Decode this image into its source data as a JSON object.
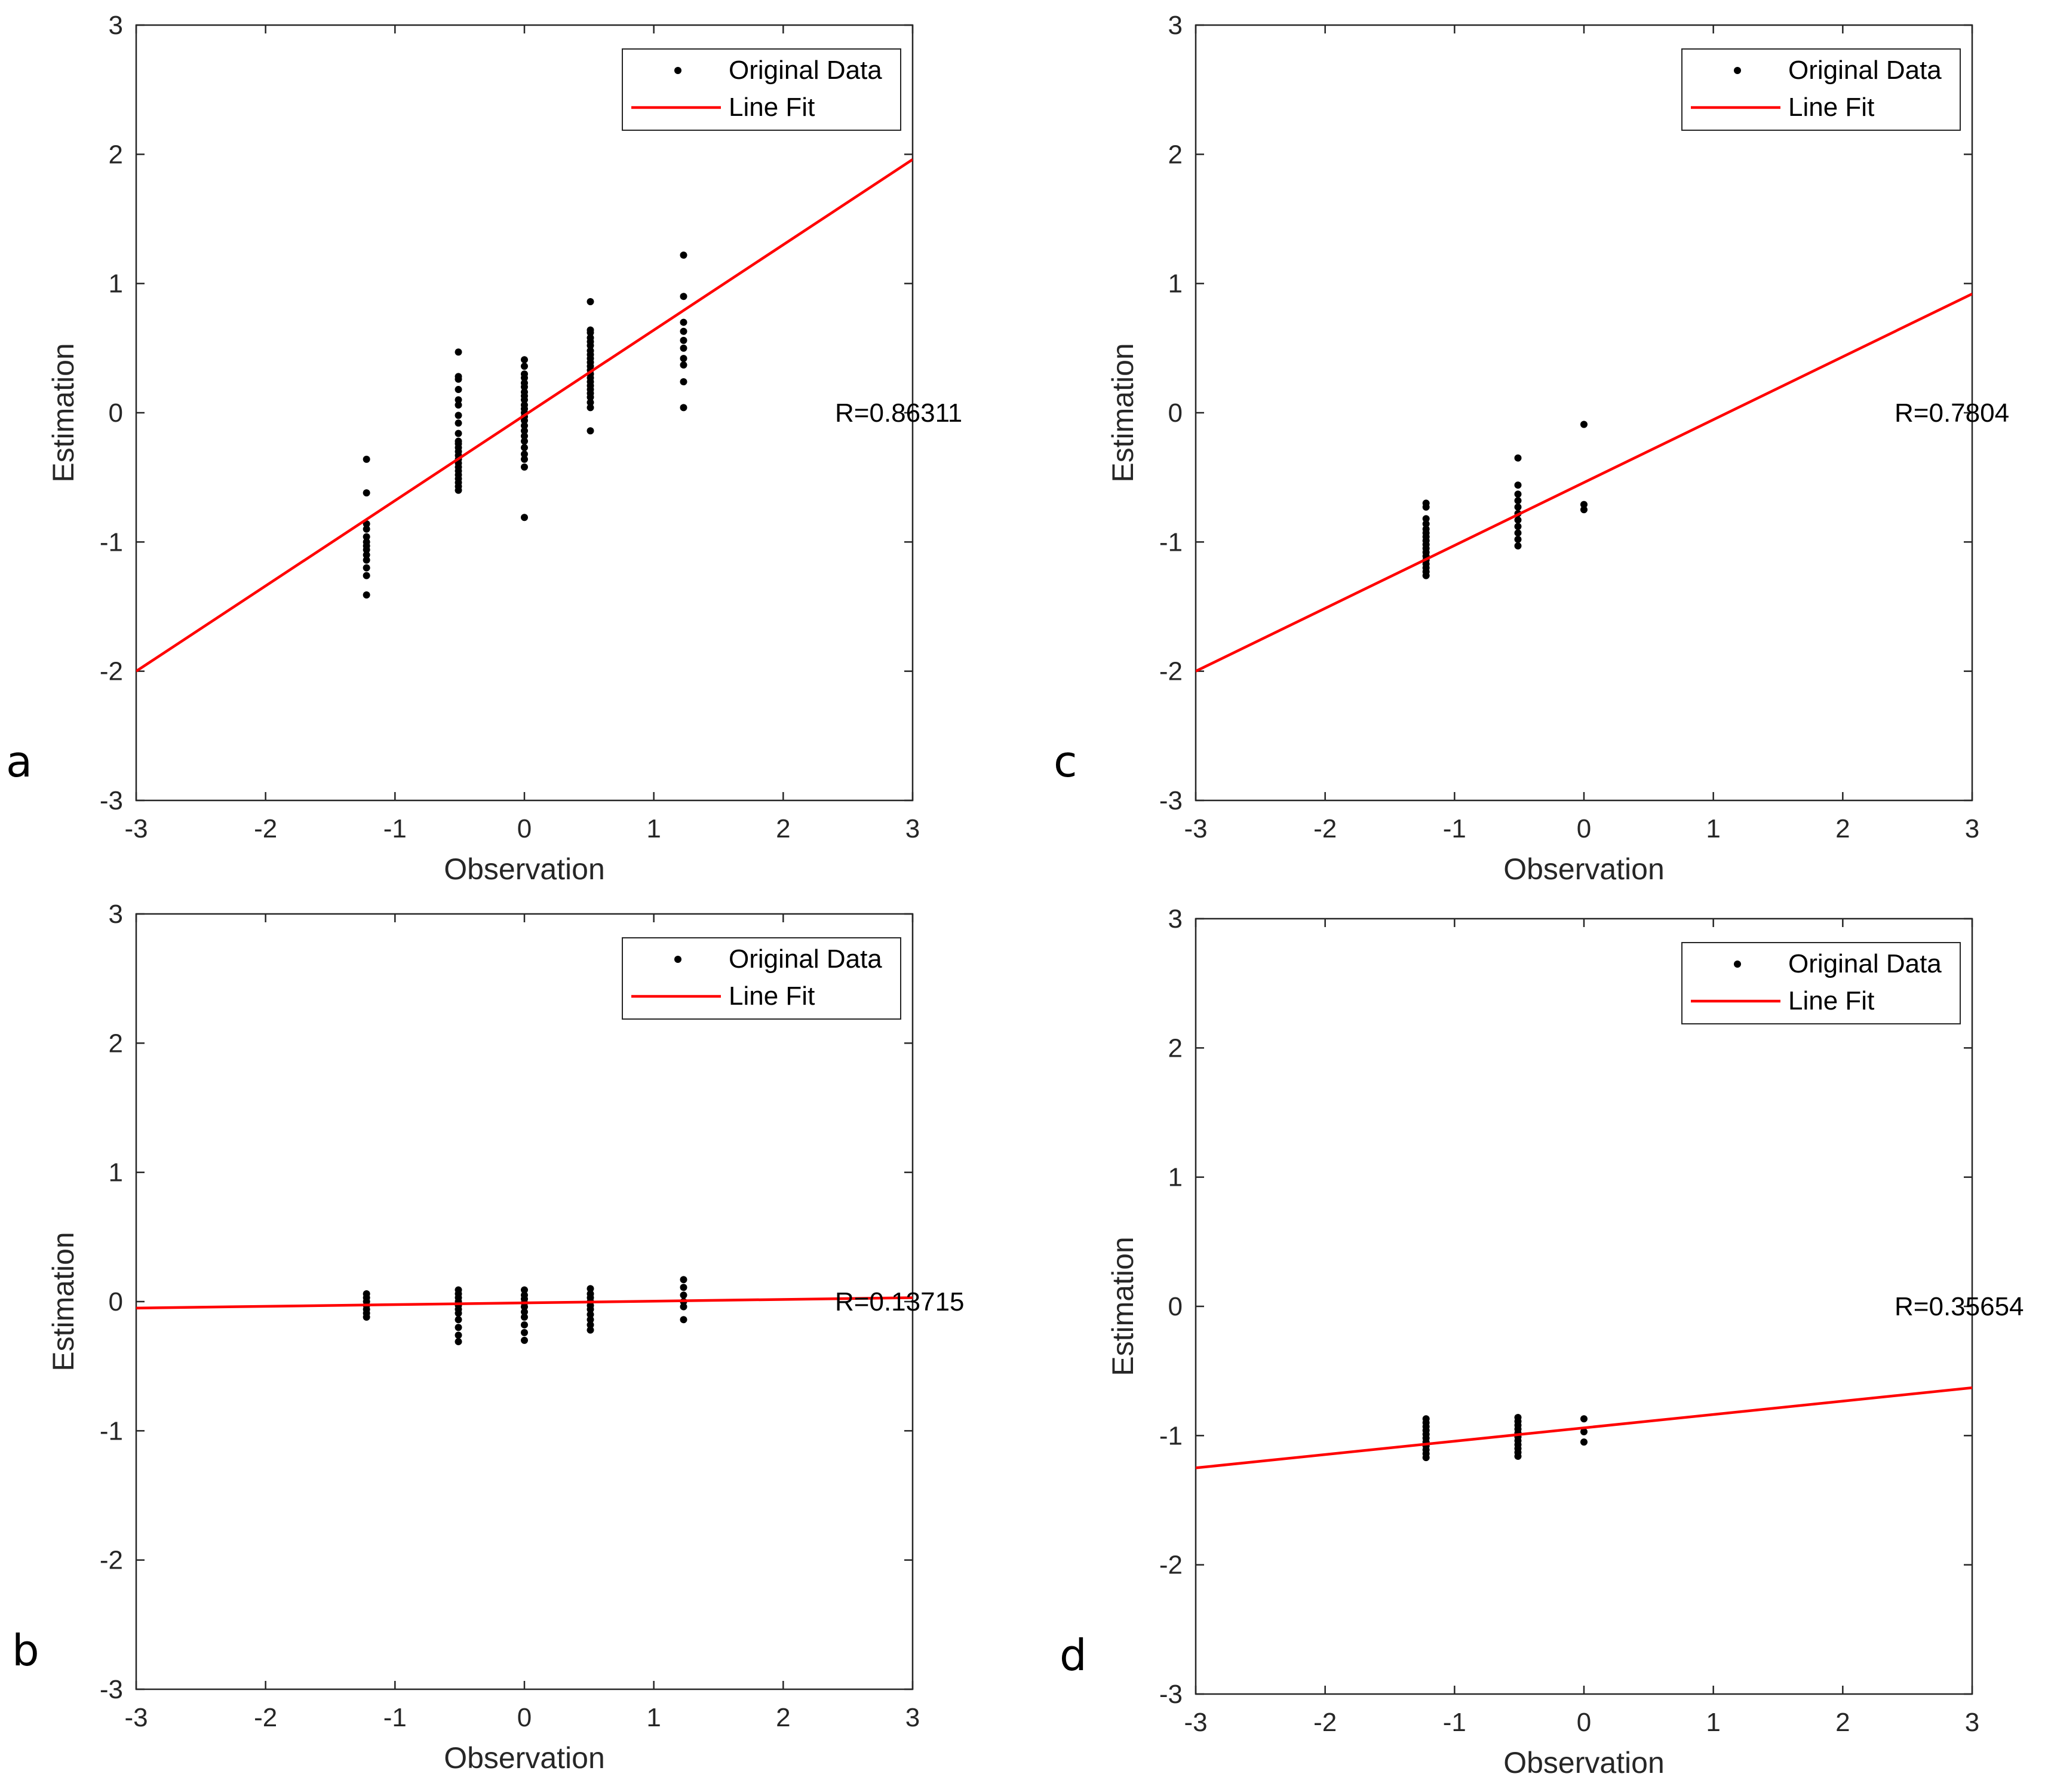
{
  "figure": {
    "colors": {
      "fit_line": "#ff0000",
      "points": "#000000",
      "axes": "#262626"
    }
  },
  "chart_data": [
    {
      "type": "scatter",
      "panel": "a",
      "xlabel": "Observation",
      "ylabel": "Estimation",
      "xlim": [
        -3,
        3
      ],
      "ylim": [
        -3,
        3
      ],
      "xticks": [
        "-3",
        "-2",
        "-1",
        "0",
        "1",
        "2",
        "3"
      ],
      "yticks": [
        "-3",
        "-2",
        "-1",
        "0",
        "1",
        "2",
        "3"
      ],
      "grid": false,
      "legend": {
        "position": "top-right",
        "entries": [
          "Original Data",
          "Line Fit"
        ]
      },
      "annotation": "R=0.86311",
      "series": [
        {
          "name": "Original Data",
          "groups": [
            {
              "x": -1.22,
              "y": [
                -0.36,
                -0.62,
                -0.86,
                -0.9,
                -0.96,
                -1.0,
                -1.03,
                -1.06,
                -1.1,
                -1.14,
                -1.2,
                -1.26,
                -1.41
              ]
            },
            {
              "x": -0.51,
              "y": [
                0.47,
                0.28,
                0.26,
                0.18,
                0.1,
                0.06,
                -0.02,
                -0.08,
                -0.16,
                -0.22,
                -0.24,
                -0.27,
                -0.3,
                -0.33,
                -0.36,
                -0.39,
                -0.42,
                -0.45,
                -0.48,
                -0.51,
                -0.54,
                -0.57,
                -0.6
              ]
            },
            {
              "x": 0.0,
              "y": [
                0.41,
                0.36,
                0.3,
                0.27,
                0.23,
                0.2,
                0.16,
                0.13,
                0.1,
                0.06,
                0.03,
                0.0,
                -0.03,
                -0.06,
                -0.1,
                -0.14,
                -0.18,
                -0.22,
                -0.27,
                -0.32,
                -0.36,
                -0.42,
                -0.81
              ]
            },
            {
              "x": 0.51,
              "y": [
                0.86,
                0.64,
                0.62,
                0.58,
                0.55,
                0.52,
                0.48,
                0.45,
                0.42,
                0.39,
                0.36,
                0.33,
                0.3,
                0.27,
                0.24,
                0.21,
                0.18,
                0.15,
                0.12,
                0.08,
                0.04,
                -0.14
              ]
            },
            {
              "x": 1.23,
              "y": [
                1.22,
                0.9,
                0.7,
                0.63,
                0.56,
                0.5,
                0.42,
                0.37,
                0.24,
                0.04
              ]
            }
          ]
        },
        {
          "name": "Line Fit",
          "type": "line",
          "x": [
            -3,
            3
          ],
          "y": [
            -2.0,
            1.96
          ]
        }
      ]
    },
    {
      "type": "scatter",
      "panel": "c",
      "xlabel": "Observation",
      "ylabel": "Estimation",
      "xlim": [
        -3,
        3
      ],
      "ylim": [
        -3,
        3
      ],
      "xticks": [
        "-3",
        "-2",
        "-1",
        "0",
        "1",
        "2",
        "3"
      ],
      "yticks": [
        "-3",
        "-2",
        "-1",
        "0",
        "1",
        "2",
        "3"
      ],
      "grid": false,
      "legend": {
        "position": "top-right",
        "entries": [
          "Original Data",
          "Line Fit"
        ]
      },
      "annotation": "R=0.7804",
      "series": [
        {
          "name": "Original Data",
          "groups": [
            {
              "x": -1.22,
              "y": [
                -0.7,
                -0.73,
                -0.82,
                -0.86,
                -0.9,
                -0.93,
                -0.96,
                -0.99,
                -1.02,
                -1.05,
                -1.08,
                -1.11,
                -1.14,
                -1.17,
                -1.2,
                -1.23,
                -1.26
              ]
            },
            {
              "x": -0.51,
              "y": [
                -0.35,
                -0.56,
                -0.63,
                -0.68,
                -0.73,
                -0.78,
                -0.83,
                -0.88,
                -0.93,
                -0.98,
                -1.03
              ]
            },
            {
              "x": 0.0,
              "y": [
                -0.09,
                -0.71,
                -0.75
              ]
            }
          ]
        },
        {
          "name": "Line Fit",
          "type": "line",
          "x": [
            -3,
            3
          ],
          "y": [
            -2.0,
            0.92
          ]
        }
      ]
    },
    {
      "type": "scatter",
      "panel": "b",
      "xlabel": "Observation",
      "ylabel": "Estimation",
      "xlim": [
        -3,
        3
      ],
      "ylim": [
        -3,
        3
      ],
      "xticks": [
        "-3",
        "-2",
        "-1",
        "0",
        "1",
        "2",
        "3"
      ],
      "yticks": [
        "-3",
        "-2",
        "-1",
        "0",
        "1",
        "2",
        "3"
      ],
      "grid": false,
      "legend": {
        "position": "top-right",
        "entries": [
          "Original Data",
          "Line Fit"
        ]
      },
      "annotation": "R=0.13715",
      "series": [
        {
          "name": "Original Data",
          "groups": [
            {
              "x": -1.22,
              "y": [
                0.06,
                0.03,
                0.0,
                -0.03,
                -0.06,
                -0.09,
                -0.12
              ]
            },
            {
              "x": -0.51,
              "y": [
                0.09,
                0.06,
                0.03,
                0.0,
                -0.03,
                -0.06,
                -0.09,
                -0.14,
                -0.2,
                -0.26,
                -0.31
              ]
            },
            {
              "x": 0.0,
              "y": [
                0.09,
                0.05,
                0.02,
                -0.01,
                -0.04,
                -0.08,
                -0.12,
                -0.18,
                -0.24,
                -0.3
              ]
            },
            {
              "x": 0.51,
              "y": [
                0.1,
                0.06,
                0.03,
                0.0,
                -0.03,
                -0.06,
                -0.1,
                -0.14,
                -0.18,
                -0.22
              ]
            },
            {
              "x": 1.23,
              "y": [
                0.17,
                0.11,
                0.05,
                0.0,
                -0.04,
                -0.14
              ]
            }
          ]
        },
        {
          "name": "Line Fit",
          "type": "line",
          "x": [
            -3,
            3
          ],
          "y": [
            -0.05,
            0.03
          ]
        }
      ]
    },
    {
      "type": "scatter",
      "panel": "d",
      "xlabel": "Observation",
      "ylabel": "Estimation",
      "xlim": [
        -3,
        3
      ],
      "ylim": [
        -3,
        3
      ],
      "xticks": [
        "-3",
        "-2",
        "-1",
        "0",
        "1",
        "2",
        "3"
      ],
      "yticks": [
        "-3",
        "-2",
        "-1",
        "0",
        "1",
        "2",
        "3"
      ],
      "grid": false,
      "legend": {
        "position": "top-right",
        "entries": [
          "Original Data",
          "Line Fit"
        ]
      },
      "annotation": "R=0.35654",
      "series": [
        {
          "name": "Original Data",
          "groups": [
            {
              "x": -1.22,
              "y": [
                -0.87,
                -0.9,
                -0.93,
                -0.96,
                -0.99,
                -1.02,
                -1.05,
                -1.08,
                -1.11,
                -1.14,
                -1.17
              ]
            },
            {
              "x": -0.51,
              "y": [
                -0.86,
                -0.89,
                -0.92,
                -0.95,
                -0.98,
                -1.01,
                -1.04,
                -1.07,
                -1.1,
                -1.13,
                -1.16
              ]
            },
            {
              "x": 0.0,
              "y": [
                -0.87,
                -0.97,
                -1.05
              ]
            }
          ]
        },
        {
          "name": "Line Fit",
          "type": "line",
          "x": [
            -3,
            3
          ],
          "y": [
            -1.25,
            -0.63
          ]
        }
      ]
    }
  ]
}
